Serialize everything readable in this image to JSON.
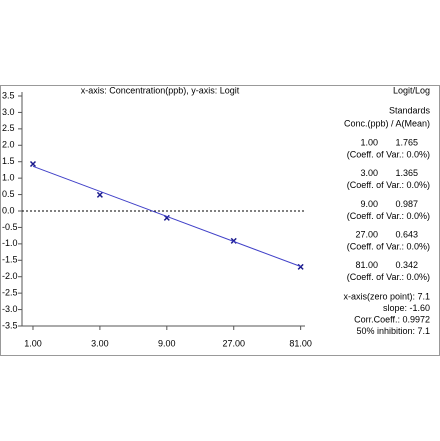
{
  "chart_data": {
    "type": "scatter",
    "title": "x-axis: Concentration(ppb), y-axis: Logit",
    "x_scale": "log",
    "xlim": [
      0.835,
      87
    ],
    "xticks": [
      {
        "value": 1,
        "label": "1.00"
      },
      {
        "value": 3,
        "label": "3.00"
      },
      {
        "value": 9,
        "label": "9.00"
      },
      {
        "value": 27,
        "label": "27.00"
      },
      {
        "value": 81,
        "label": "81.00"
      }
    ],
    "ylim": [
      -3.5,
      3.5
    ],
    "yticks": [
      3.5,
      {
        "value": 3,
        "label": "3.0"
      },
      2.5,
      {
        "value": 2,
        "label": "2.0"
      },
      1.5,
      {
        "value": 1,
        "label": "1.0"
      },
      0.5,
      {
        "value": 0,
        "label": "0.0"
      },
      -0.5,
      {
        "value": -1,
        "label": "-1.0"
      },
      -1.5,
      {
        "value": -2,
        "label": "-2.0"
      },
      -2.5,
      {
        "value": -3,
        "label": "-3.0"
      },
      -3.5
    ],
    "zero_line": true,
    "series": [
      {
        "kind": "points",
        "color": "#1a1a8c",
        "x": [
          1,
          3,
          9,
          27,
          81
        ],
        "values": [
          1.43,
          0.49,
          -0.21,
          -0.91,
          -1.7
        ]
      },
      {
        "kind": "fit",
        "color": "#4040c8",
        "x": [
          1,
          81
        ],
        "values": [
          1.36,
          -1.69
        ]
      }
    ],
    "panel": {
      "title": "Logit/Log",
      "heading": [
        "Standards",
        "Conc.(ppb) / A(Mean)"
      ],
      "standards": [
        {
          "conc": "1.00",
          "mean": "1.765",
          "cv": "(Coeff. of Var.: 0.0%)"
        },
        {
          "conc": "3.00",
          "mean": "1.365",
          "cv": "(Coeff. of Var.: 0.0%)"
        },
        {
          "conc": "9.00",
          "mean": "0.987",
          "cv": "(Coeff. of Var.: 0.0%)"
        },
        {
          "conc": "27.00",
          "mean": "0.643",
          "cv": "(Coeff. of Var.: 0.0%)"
        },
        {
          "conc": "81.00",
          "mean": "0.342",
          "cv": "(Coeff. of Var.: 0.0%)"
        }
      ],
      "stats": [
        "x-axis(zero point): 7.1",
        "slope: -1.60",
        "Corr.Coeff.: 0.9972",
        "50% inhibition: 7.1"
      ]
    }
  }
}
